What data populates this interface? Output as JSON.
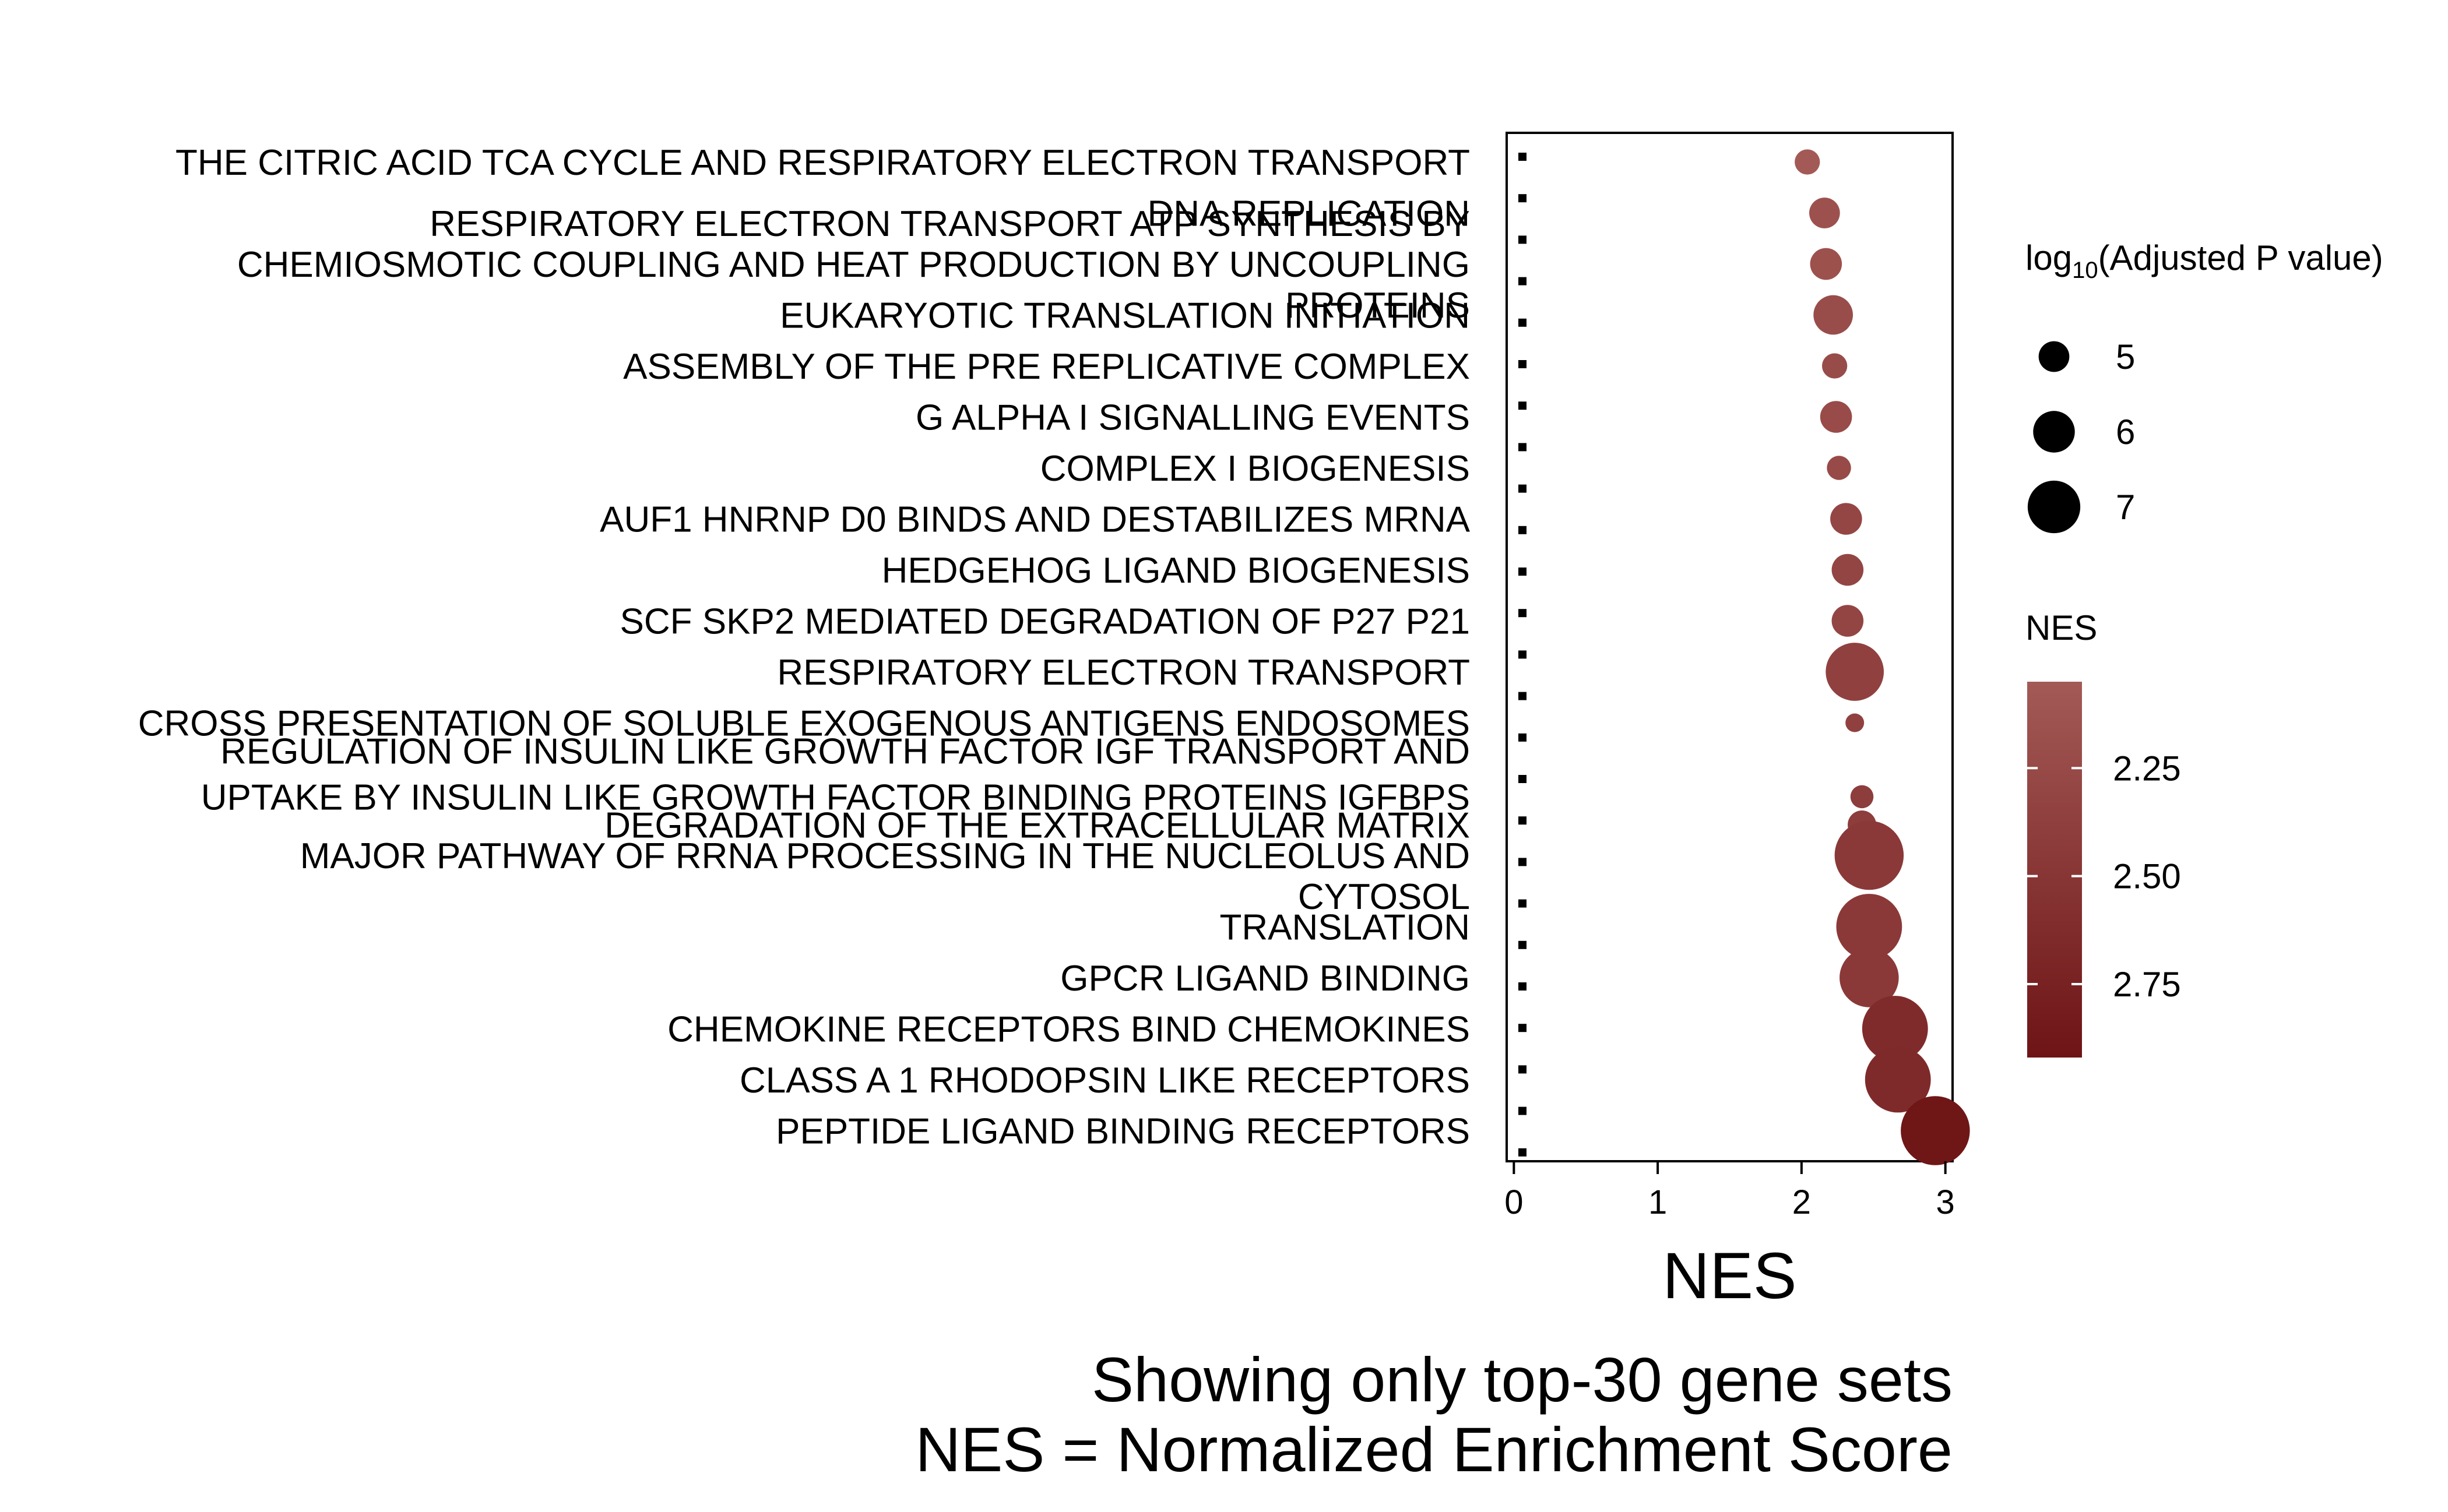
{
  "chart_data": {
    "type": "scatter",
    "title": "",
    "xlabel": "NES",
    "ylabel": "",
    "xlim": [
      -0.05,
      3.05
    ],
    "xticks": [
      "0",
      "1",
      "2",
      "3"
    ],
    "caption_lines": [
      "Showing only top-30 gene sets",
      "NES = Normalized Enrichment Score"
    ],
    "legend_size": {
      "title_main": "log",
      "title_sub": "10",
      "title_rest": "(Adjusted P value)",
      "entries": [
        {
          "label": "5",
          "value": 5
        },
        {
          "label": "6",
          "value": 6
        },
        {
          "label": "7",
          "value": 7
        }
      ]
    },
    "legend_color": {
      "title": "NES",
      "ticks": [
        "2.25",
        "2.50",
        "2.75"
      ],
      "tick_values": [
        2.25,
        2.5,
        2.75
      ],
      "range": [
        2.05,
        2.95
      ],
      "color_low": "#a35a56",
      "color_high": "#6e1416"
    },
    "points": [
      {
        "label": "THE CITRIC ACID TCA CYCLE AND RESPIRATORY ELECTRON TRANSPORT",
        "row": 0,
        "nes": 2.04,
        "log10_padj": 4.5
      },
      {
        "label": "DNA REPLICATION",
        "row": 1,
        "nes": 2.16,
        "log10_padj": 5.0
      },
      {
        "label": "RESPIRATORY ELECTRON TRANSPORT ATP SYNTHESIS BY",
        "row": 1.2,
        "nes": null,
        "log10_padj": null
      },
      {
        "label": "CHEMIOSMOTIC COUPLING AND HEAT PRODUCTION BY UNCOUPLING",
        "row": 2,
        "nes": 2.17,
        "log10_padj": 5.1
      },
      {
        "label": "PROTEINS",
        "row": 2.8,
        "nes": null,
        "log10_padj": null
      },
      {
        "label": "EUKARYOTIC TRANSLATION INITIATION",
        "row": 3,
        "nes": 2.22,
        "log10_padj": 5.8
      },
      {
        "label": "ASSEMBLY OF THE PRE REPLICATIVE COMPLEX",
        "row": 4,
        "nes": 2.23,
        "log10_padj": 4.5
      },
      {
        "label": "G ALPHA I SIGNALLING EVENTS",
        "row": 5,
        "nes": 2.24,
        "log10_padj": 5.1
      },
      {
        "label": "COMPLEX I BIOGENESIS",
        "row": 6,
        "nes": 2.26,
        "log10_padj": 4.4
      },
      {
        "label": "AUF1 HNRNP D0 BINDS AND DESTABILIZES MRNA",
        "row": 7,
        "nes": 2.31,
        "log10_padj": 5.1
      },
      {
        "label": "HEDGEHOG LIGAND BIOGENESIS",
        "row": 8,
        "nes": 2.32,
        "log10_padj": 5.1
      },
      {
        "label": "SCF SKP2 MEDIATED DEGRADATION OF P27 P21",
        "row": 9,
        "nes": 2.32,
        "log10_padj": 5.1
      },
      {
        "label": "RESPIRATORY ELECTRON TRANSPORT",
        "row": 10,
        "nes": 2.37,
        "log10_padj": 7.5
      },
      {
        "label": "CROSS PRESENTATION OF SOLUBLE EXOGENOUS ANTIGENS ENDOSOMES",
        "row": 11,
        "nes": 2.37,
        "log10_padj": 3.9
      },
      {
        "label": "REGULATION OF INSULIN LIKE GROWTH FACTOR IGF TRANSPORT AND",
        "row": 11.55,
        "nes": null,
        "log10_padj": null
      },
      {
        "label": "UPTAKE BY INSULIN LIKE GROWTH FACTOR BINDING PROTEINS IGFBPS",
        "row": 12.45,
        "nes": 2.42,
        "log10_padj": 4.3
      },
      {
        "label": "DEGRADATION OF THE EXTRACELLULAR MATRIX",
        "row": 13,
        "nes": 2.42,
        "log10_padj": 4.8
      },
      {
        "label": "MAJOR PATHWAY OF RRNA PROCESSING IN THE NUCLEOLUS AND",
        "row": 13.6,
        "nes": 2.47,
        "log10_padj": 8.5
      },
      {
        "label": "CYTOSOL",
        "row": 14.4,
        "nes": null,
        "log10_padj": null
      },
      {
        "label": "TRANSLATION",
        "row": 15,
        "nes": 2.47,
        "log10_padj": 8.2
      },
      {
        "label": "GPCR LIGAND BINDING",
        "row": 16,
        "nes": 2.47,
        "log10_padj": 7.6
      },
      {
        "label": "CHEMOKINE RECEPTORS BIND CHEMOKINES",
        "row": 17,
        "nes": 2.65,
        "log10_padj": 8.2
      },
      {
        "label": "CLASS A 1 RHODOPSIN LIKE RECEPTORS",
        "row": 18,
        "nes": 2.67,
        "log10_padj": 8.2
      },
      {
        "label": "PEPTIDE LIGAND BINDING RECEPTORS",
        "row": 19,
        "nes": 2.93,
        "log10_padj": 8.5
      }
    ]
  }
}
